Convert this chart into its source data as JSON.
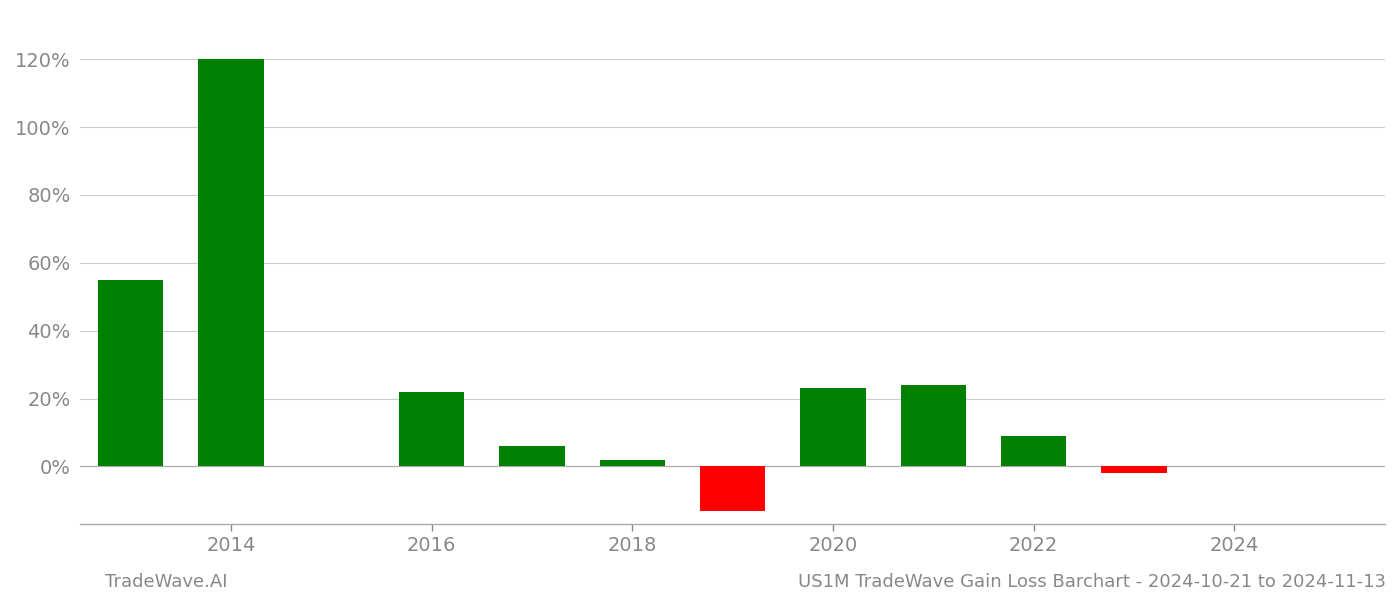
{
  "years": [
    2013,
    2014,
    2016,
    2017,
    2018,
    2019,
    2020,
    2021,
    2022,
    2023
  ],
  "values": [
    0.55,
    1.2,
    0.22,
    0.06,
    0.02,
    -0.13,
    0.23,
    0.24,
    0.09,
    -0.02
  ],
  "bar_width": 0.65,
  "color_positive": "#008000",
  "color_negative": "#ff0000",
  "background_color": "#ffffff",
  "grid_color": "#cccccc",
  "footer_left": "TradeWave.AI",
  "footer_right": "US1M TradeWave Gain Loss Barchart - 2024-10-21 to 2024-11-13",
  "ylim_min": -0.17,
  "ylim_max": 1.33,
  "xlim_min": 2012.5,
  "xlim_max": 2025.5,
  "yticks": [
    0.0,
    0.2,
    0.4,
    0.6,
    0.8,
    1.0,
    1.2
  ],
  "xticks": [
    2014,
    2016,
    2018,
    2020,
    2022,
    2024
  ],
  "tick_label_color": "#888888",
  "axis_color": "#aaaaaa",
  "footer_fontsize": 13,
  "tick_fontsize": 14
}
